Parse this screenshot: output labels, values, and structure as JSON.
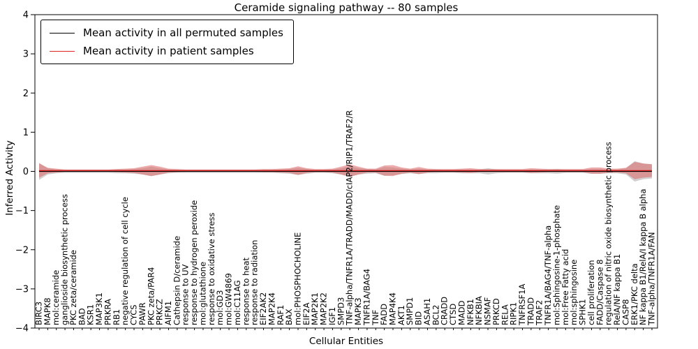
{
  "title": "Ceramide signaling pathway -- 80 samples",
  "axes": {
    "x_label": "Cellular Entities",
    "y_label": "Inferred Activity"
  },
  "legend": {
    "items": [
      {
        "label": "Mean activity in all permuted samples",
        "color": "#000000"
      },
      {
        "label": "Mean activity in patient samples",
        "color": "#dd2222"
      }
    ]
  },
  "chart_data": {
    "type": "line",
    "title": "Ceramide signaling pathway -- 80 samples",
    "xlabel": "Cellular Entities",
    "ylabel": "Inferred Activity",
    "ylim": [
      -4,
      4
    ],
    "yticks": [
      4,
      3,
      2,
      1,
      0,
      -1,
      -2,
      -3,
      -4
    ],
    "grid": false,
    "legend_position": "upper left",
    "categories": [
      "BIRC3",
      "MAPK8",
      "mol:ceramide",
      "ganglioside biosynthetic process",
      "PKC zeta/ceramide",
      "BAD",
      "KSR1",
      "MAP3K1",
      "PRKRA",
      "RB1",
      "negative regulation of cell cycle",
      "CYCS",
      "PAWR",
      "PKC zeta/PAR4",
      "PRKCZ",
      "AIFM1",
      "Cathepsin D/ceramide",
      "response to UV",
      "response to hydrogen peroxide",
      "mol:glutathione",
      "response to oxidative stress",
      "mol:GD3",
      "mol:GW4869",
      "mol:C11AG",
      "response to heat",
      "response to radiation",
      "EIF2AK2",
      "MAP2K4",
      "RAF1",
      "BAX",
      "mol:PHOSPHOCHOLINE",
      "EIF2A",
      "MAP2K1",
      "MAP2K2",
      "IGF1",
      "SMPD3",
      "TNF-alpha/TNFR1A/TRADD/MADD/cIAP2/RIP1/TRAF2/R",
      "MAPK3",
      "TNFR1A/BAG4",
      "TNF",
      "FADD",
      "MAP4K4",
      "AKT1",
      "SMPD1",
      "BID",
      "ASAH1",
      "BCL2",
      "CRADD",
      "CTSD",
      "MADD",
      "NFKB1",
      "NFKBIA",
      "NSMAF",
      "PRKCD",
      "RELA",
      "RIPK1",
      "TNFRSF1A",
      "TRADD",
      "TRAF2",
      "TNFR1A/BAG4/TNF-alpha",
      "mol:Sphingosine-1-phosphate",
      "mol:Free Fatty acid",
      "mol:sphingosine",
      "SPHK1",
      "cell proliferation",
      "FADD/Caspase 8",
      "regulation of nitric oxide biosynthetic process",
      "RelA/NF kappa B1",
      "CASP8",
      "ERK1/PKC delta",
      "NF kappa B1/RelA/I kappa B alpha",
      "TNF-alpha/TNFR1A/FAN"
    ],
    "series": [
      {
        "name": "Mean activity in all permuted samples",
        "color": "#000000",
        "band_color": "#aaaaaa",
        "band_opacity": 0.55,
        "mean": 0.0,
        "spread": [
          0.22,
          0.08,
          0.05,
          0.04,
          0.04,
          0.04,
          0.04,
          0.04,
          0.04,
          0.05,
          0.05,
          0.06,
          0.08,
          0.12,
          0.08,
          0.05,
          0.04,
          0.04,
          0.04,
          0.04,
          0.04,
          0.04,
          0.04,
          0.04,
          0.04,
          0.04,
          0.04,
          0.04,
          0.05,
          0.06,
          0.09,
          0.06,
          0.04,
          0.04,
          0.05,
          0.08,
          0.13,
          0.08,
          0.06,
          0.05,
          0.11,
          0.1,
          0.07,
          0.05,
          0.07,
          0.05,
          0.05,
          0.04,
          0.04,
          0.05,
          0.05,
          0.05,
          0.08,
          0.05,
          0.04,
          0.04,
          0.04,
          0.05,
          0.05,
          0.05,
          0.06,
          0.04,
          0.04,
          0.04,
          0.06,
          0.06,
          0.05,
          0.05,
          0.08,
          0.26,
          0.2,
          0.18
        ]
      },
      {
        "name": "Mean activity in patient samples",
        "color": "#dd2222",
        "band_color": "#e06666",
        "band_opacity": 0.55,
        "mean": 0.02,
        "spread": [
          0.18,
          0.07,
          0.05,
          0.03,
          0.03,
          0.03,
          0.03,
          0.03,
          0.03,
          0.04,
          0.05,
          0.06,
          0.1,
          0.14,
          0.1,
          0.05,
          0.04,
          0.03,
          0.03,
          0.03,
          0.03,
          0.03,
          0.03,
          0.03,
          0.03,
          0.03,
          0.04,
          0.04,
          0.05,
          0.06,
          0.11,
          0.06,
          0.04,
          0.04,
          0.05,
          0.1,
          0.16,
          0.1,
          0.05,
          0.05,
          0.13,
          0.14,
          0.08,
          0.05,
          0.09,
          0.05,
          0.04,
          0.04,
          0.04,
          0.05,
          0.06,
          0.04,
          0.04,
          0.04,
          0.04,
          0.04,
          0.04,
          0.06,
          0.05,
          0.04,
          0.04,
          0.04,
          0.04,
          0.04,
          0.08,
          0.08,
          0.05,
          0.05,
          0.07,
          0.22,
          0.18,
          0.16
        ]
      }
    ]
  }
}
